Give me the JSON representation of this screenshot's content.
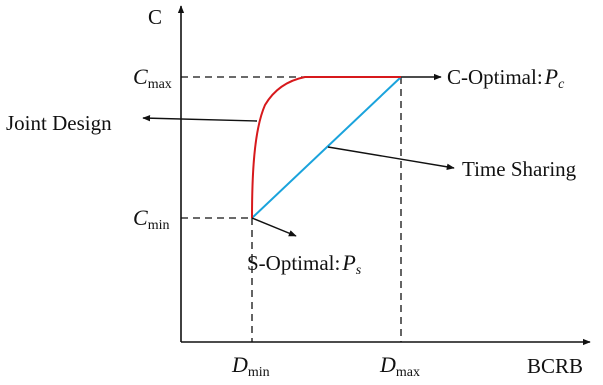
{
  "axes": {
    "y_label": "C",
    "x_label": "BCRB"
  },
  "ticks": {
    "c_max": {
      "main": "C",
      "sub": "max"
    },
    "c_min": {
      "main": "C",
      "sub": "min"
    },
    "d_min": {
      "main": "D",
      "sub": "min"
    },
    "d_max": {
      "main": "D",
      "sub": "max"
    }
  },
  "annotations": {
    "c_optimal": {
      "text": "C-Optimal:",
      "symbol": "P",
      "sub": "c"
    },
    "s_optimal": {
      "text": "S-Optimal:",
      "symbol": "P",
      "sub": "s"
    },
    "joint_design": "Joint Design",
    "time_sharing": "Time Sharing"
  },
  "colors": {
    "joint_design_curve": "#d7191c",
    "time_sharing_line": "#1aa3dc",
    "axes": "#111111"
  }
}
